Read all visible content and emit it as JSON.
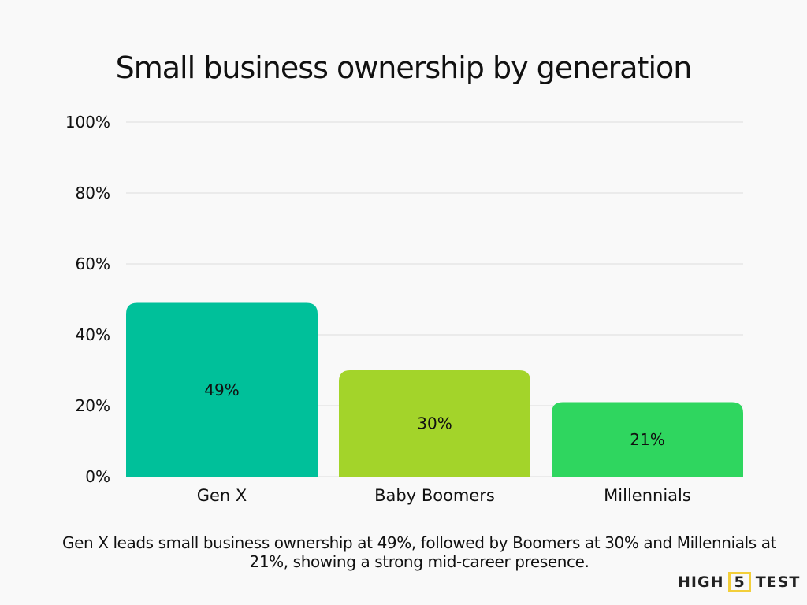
{
  "chart_data": {
    "type": "bar",
    "title": "Small business ownership by generation",
    "categories": [
      "Gen X",
      "Baby Boomers",
      "Millennials"
    ],
    "values": [
      49,
      30,
      21
    ],
    "data_labels": [
      "49%",
      "30%",
      "21%"
    ],
    "colors": [
      "#00c09a",
      "#a3d42a",
      "#2fd65f"
    ],
    "ylim": [
      0,
      100
    ],
    "yticks": [
      0,
      20,
      40,
      60,
      80,
      100
    ],
    "ytick_labels": [
      "0%",
      "20%",
      "40%",
      "60%",
      "80%",
      "100%"
    ],
    "grid": true,
    "xlabel": "",
    "ylabel": ""
  },
  "caption": "Gen X leads small business ownership at 49%, followed by Boomers at 30% and Millennials at 21%, showing a strong mid-career presence.",
  "logo": {
    "left": "HIGH",
    "mid": "5",
    "right": "TEST"
  }
}
